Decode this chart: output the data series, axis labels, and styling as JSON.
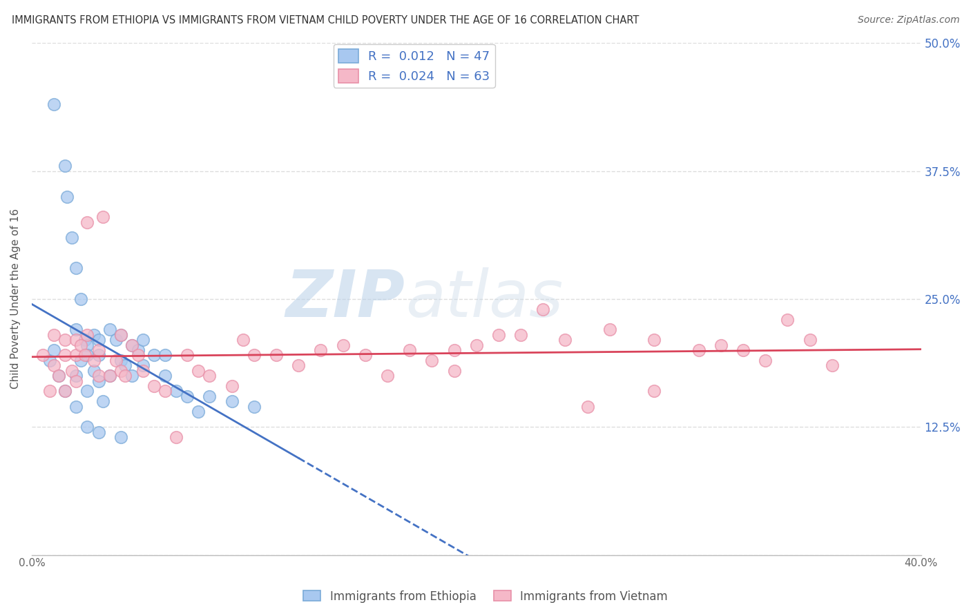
{
  "title": "IMMIGRANTS FROM ETHIOPIA VS IMMIGRANTS FROM VIETNAM CHILD POVERTY UNDER THE AGE OF 16 CORRELATION CHART",
  "source": "Source: ZipAtlas.com",
  "ylabel": "Child Poverty Under the Age of 16",
  "xlim": [
    0.0,
    0.4
  ],
  "ylim": [
    0.0,
    0.5
  ],
  "xticks": [
    0.0,
    0.05,
    0.1,
    0.15,
    0.2,
    0.25,
    0.3,
    0.35,
    0.4
  ],
  "xticklabels": [
    "0.0%",
    "",
    "",
    "",
    "",
    "",
    "",
    "",
    "40.0%"
  ],
  "yticks": [
    0.0,
    0.125,
    0.25,
    0.375,
    0.5
  ],
  "yticklabels_right": [
    "",
    "12.5%",
    "25.0%",
    "37.5%",
    "50.0%"
  ],
  "legend_line1": "R =  0.012   N = 47",
  "legend_line2": "R =  0.024   N = 63",
  "color_ethiopia_fill": "#A8C8F0",
  "color_ethiopia_edge": "#7AAAD8",
  "color_vietnam_fill": "#F5B8C8",
  "color_vietnam_edge": "#E890A8",
  "color_trend_ethiopia": "#4472C4",
  "color_trend_vietnam": "#D9435A",
  "watermark_zip": "ZIP",
  "watermark_atlas": "atlas",
  "background_color": "#FFFFFF",
  "grid_color": "#DDDDDD",
  "ethiopia_x": [
    0.008,
    0.01,
    0.01,
    0.012,
    0.015,
    0.015,
    0.016,
    0.018,
    0.02,
    0.02,
    0.02,
    0.022,
    0.022,
    0.024,
    0.025,
    0.025,
    0.025,
    0.028,
    0.028,
    0.03,
    0.03,
    0.03,
    0.032,
    0.035,
    0.035,
    0.038,
    0.04,
    0.04,
    0.042,
    0.045,
    0.045,
    0.048,
    0.05,
    0.05,
    0.055,
    0.06,
    0.06,
    0.065,
    0.07,
    0.075,
    0.08,
    0.09,
    0.1,
    0.02,
    0.025,
    0.03,
    0.04
  ],
  "ethiopia_y": [
    0.19,
    0.44,
    0.2,
    0.175,
    0.38,
    0.16,
    0.35,
    0.31,
    0.28,
    0.22,
    0.175,
    0.25,
    0.19,
    0.21,
    0.205,
    0.195,
    0.16,
    0.215,
    0.18,
    0.21,
    0.195,
    0.17,
    0.15,
    0.22,
    0.175,
    0.21,
    0.215,
    0.19,
    0.185,
    0.205,
    0.175,
    0.2,
    0.21,
    0.185,
    0.195,
    0.195,
    0.175,
    0.16,
    0.155,
    0.14,
    0.155,
    0.15,
    0.145,
    0.145,
    0.125,
    0.12,
    0.115
  ],
  "vietnam_x": [
    0.005,
    0.008,
    0.01,
    0.01,
    0.012,
    0.015,
    0.015,
    0.015,
    0.018,
    0.02,
    0.02,
    0.02,
    0.022,
    0.024,
    0.025,
    0.025,
    0.028,
    0.03,
    0.03,
    0.032,
    0.035,
    0.038,
    0.04,
    0.04,
    0.042,
    0.045,
    0.048,
    0.05,
    0.055,
    0.06,
    0.065,
    0.07,
    0.075,
    0.08,
    0.09,
    0.095,
    0.1,
    0.11,
    0.12,
    0.13,
    0.14,
    0.15,
    0.16,
    0.17,
    0.18,
    0.19,
    0.2,
    0.21,
    0.22,
    0.24,
    0.26,
    0.28,
    0.3,
    0.31,
    0.32,
    0.33,
    0.34,
    0.35,
    0.36,
    0.28,
    0.25,
    0.23,
    0.19
  ],
  "vietnam_y": [
    0.195,
    0.16,
    0.215,
    0.185,
    0.175,
    0.21,
    0.195,
    0.16,
    0.18,
    0.21,
    0.195,
    0.17,
    0.205,
    0.195,
    0.325,
    0.215,
    0.19,
    0.175,
    0.2,
    0.33,
    0.175,
    0.19,
    0.215,
    0.18,
    0.175,
    0.205,
    0.195,
    0.18,
    0.165,
    0.16,
    0.115,
    0.195,
    0.18,
    0.175,
    0.165,
    0.21,
    0.195,
    0.195,
    0.185,
    0.2,
    0.205,
    0.195,
    0.175,
    0.2,
    0.19,
    0.2,
    0.205,
    0.215,
    0.215,
    0.21,
    0.22,
    0.21,
    0.2,
    0.205,
    0.2,
    0.19,
    0.23,
    0.21,
    0.185,
    0.16,
    0.145,
    0.24,
    0.18
  ]
}
